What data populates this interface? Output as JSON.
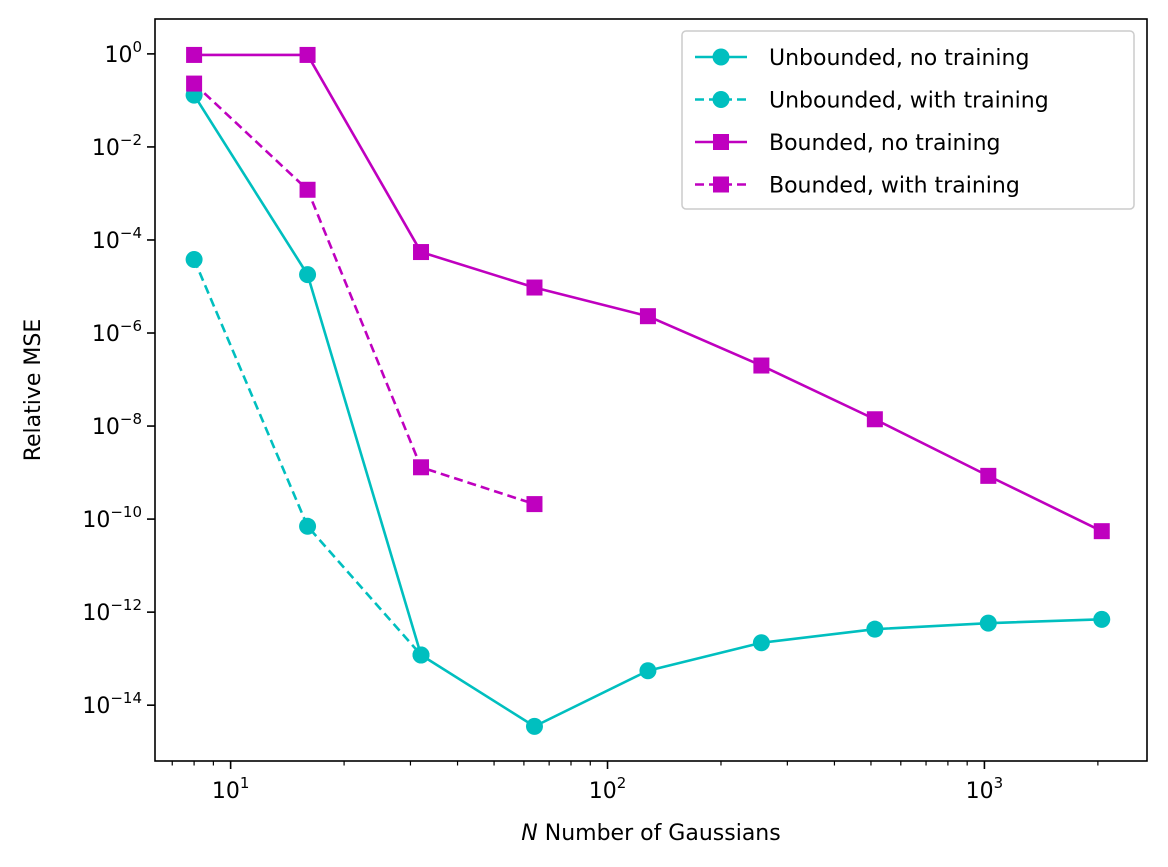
{
  "chart_data": {
    "type": "line",
    "title": "",
    "xlabel_var": "N",
    "xlabel_text": " Number of Gaussians",
    "ylabel": "Relative MSE",
    "xscale": "log",
    "yscale": "log",
    "xlim": [
      6.3,
      2700
    ],
    "ylim_exp": [
      -15.2,
      0.75
    ],
    "legend_position": "top-right",
    "xticks": [
      {
        "value": 10,
        "base": "10",
        "exp": "1"
      },
      {
        "value": 100,
        "base": "10",
        "exp": "2"
      },
      {
        "value": 1000,
        "base": "10",
        "exp": "3"
      }
    ],
    "yticks": [
      {
        "exp_value": 0,
        "base": "10",
        "exp": "0"
      },
      {
        "exp_value": -2,
        "base": "10",
        "exp": "−2"
      },
      {
        "exp_value": -4,
        "base": "10",
        "exp": "−4"
      },
      {
        "exp_value": -6,
        "base": "10",
        "exp": "−6"
      },
      {
        "exp_value": -8,
        "base": "10",
        "exp": "−8"
      },
      {
        "exp_value": -10,
        "base": "10",
        "exp": "−10"
      },
      {
        "exp_value": -12,
        "base": "10",
        "exp": "−12"
      },
      {
        "exp_value": -14,
        "base": "10",
        "exp": "−14"
      }
    ],
    "series": [
      {
        "name": "Unbounded, no training",
        "color": "#00bfbf",
        "dash": "solid",
        "marker": "circle",
        "x": [
          8,
          16,
          32,
          64,
          128,
          256,
          512,
          1024,
          2048
        ],
        "y": [
          0.13,
          1.8e-05,
          1.2e-13,
          3.5e-15,
          5.5e-14,
          2.2e-13,
          4.3e-13,
          5.8e-13,
          7e-13
        ]
      },
      {
        "name": "Unbounded, with training",
        "color": "#00bfbf",
        "dash": "dashed",
        "marker": "circle",
        "x": [
          8,
          16,
          32
        ],
        "y": [
          3.8e-05,
          7e-11,
          1.2e-13
        ]
      },
      {
        "name": "Bounded, no training",
        "color": "#bf00bf",
        "dash": "solid",
        "marker": "square",
        "x": [
          8,
          16,
          32,
          64,
          128,
          256,
          512,
          1024,
          2048
        ],
        "y": [
          0.95,
          0.95,
          5.5e-05,
          9.5e-06,
          2.3e-06,
          2e-07,
          1.4e-08,
          8.5e-10,
          5.5e-11
        ]
      },
      {
        "name": "Bounded, with training",
        "color": "#bf00bf",
        "dash": "dashed",
        "marker": "square",
        "x": [
          8,
          16,
          32,
          64
        ],
        "y": [
          0.23,
          0.0012,
          1.3e-09,
          2.1e-10
        ]
      }
    ]
  }
}
